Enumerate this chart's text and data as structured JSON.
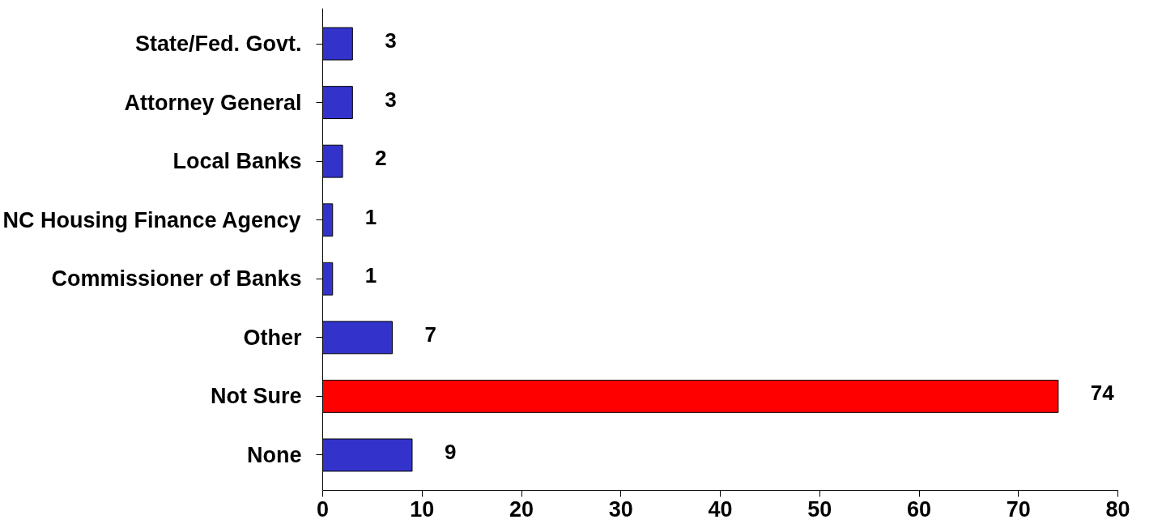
{
  "chart_data": {
    "type": "bar",
    "orientation": "horizontal",
    "categories": [
      "State/Fed. Govt.",
      "Attorney General",
      "Local Banks",
      "NC Housing Finance Agency",
      "Commissioner of Banks",
      "Other",
      "Not Sure",
      "None"
    ],
    "values": [
      3,
      3,
      2,
      1,
      1,
      7,
      74,
      9
    ],
    "colors": [
      "#3333cc",
      "#3333cc",
      "#3333cc",
      "#3333cc",
      "#3333cc",
      "#3333cc",
      "#ff0000",
      "#3333cc"
    ],
    "xlim": [
      0,
      80
    ],
    "xticks": [
      0,
      10,
      20,
      30,
      40,
      50,
      60,
      70,
      80
    ],
    "data_labels": true,
    "grid": false
  }
}
